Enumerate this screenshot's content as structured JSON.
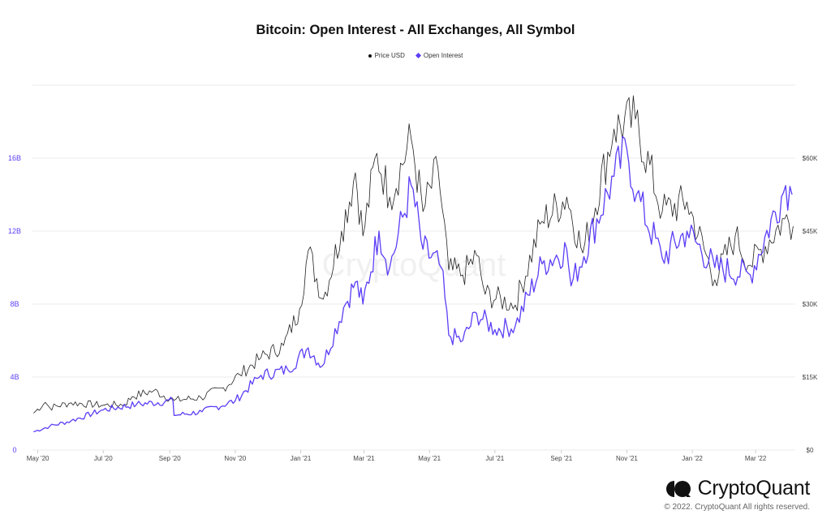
{
  "brand": {
    "name": "CryptoQuant",
    "copyright": "© 2022. CryptoQuant All rights reserved."
  },
  "watermark": "CryptoQuant",
  "colors": {
    "price": "#222222",
    "open_interest": "#5b3ff6",
    "grid": "#ebebeb"
  },
  "chart_data": {
    "type": "line",
    "title": "Bitcoin: Open Interest - All Exchanges, All Symbol",
    "legend": [
      "Price USD",
      "Open Interest"
    ],
    "legend_position": "top-center",
    "grid": true,
    "x_tick_labels": [
      "May '20",
      "Jul '20",
      "Sep '20",
      "Nov '20",
      "Jan '21",
      "Mar '21",
      "May '21",
      "Jul '21",
      "Sep '21",
      "Nov '21",
      "Jan '22",
      "Mar '22"
    ],
    "x_range": [
      "2020-04-26",
      "2022-04-07"
    ],
    "left_axis": {
      "series": "Open Interest",
      "ticks": [
        "0",
        "4B",
        "8B",
        "12B",
        "16B"
      ],
      "ylim": [
        0,
        20
      ]
    },
    "right_axis": {
      "series": "Price USD",
      "ticks": [
        "$0",
        "$15K",
        "$30K",
        "$45K",
        "$60K"
      ],
      "ylim": [
        0,
        75000
      ]
    },
    "series": [
      {
        "name": "Price USD",
        "axis": "right",
        "points": [
          [
            "2020-04-27",
            7600
          ],
          [
            "2020-05-08",
            9800
          ],
          [
            "2020-05-12",
            8700
          ],
          [
            "2020-06-01",
            9700
          ],
          [
            "2020-07-01",
            9200
          ],
          [
            "2020-07-21",
            9400
          ],
          [
            "2020-07-28",
            11000
          ],
          [
            "2020-08-17",
            12200
          ],
          [
            "2020-09-05",
            10200
          ],
          [
            "2020-09-30",
            10800
          ],
          [
            "2020-10-21",
            12800
          ],
          [
            "2020-11-05",
            15500
          ],
          [
            "2020-11-25",
            19000
          ],
          [
            "2020-12-16",
            21500
          ],
          [
            "2020-12-31",
            29000
          ],
          [
            "2021-01-08",
            41000
          ],
          [
            "2021-01-22",
            31000
          ],
          [
            "2021-02-08",
            45000
          ],
          [
            "2021-02-21",
            57000
          ],
          [
            "2021-02-28",
            44000
          ],
          [
            "2021-03-13",
            61000
          ],
          [
            "2021-03-25",
            52000
          ],
          [
            "2021-04-14",
            64000
          ],
          [
            "2021-04-25",
            49000
          ],
          [
            "2021-05-09",
            58000
          ],
          [
            "2021-05-19",
            37000
          ],
          [
            "2021-06-01",
            36000
          ],
          [
            "2021-06-14",
            40000
          ],
          [
            "2021-06-22",
            32000
          ],
          [
            "2021-07-20",
            29800
          ],
          [
            "2021-08-14",
            47000
          ],
          [
            "2021-09-06",
            52000
          ],
          [
            "2021-09-21",
            40500
          ],
          [
            "2021-10-20",
            66000
          ],
          [
            "2021-11-09",
            68000
          ],
          [
            "2021-12-04",
            49000
          ],
          [
            "2021-12-27",
            51000
          ],
          [
            "2022-01-22",
            35000
          ],
          [
            "2022-02-10",
            44000
          ],
          [
            "2022-02-24",
            38000
          ],
          [
            "2022-03-28",
            47500
          ],
          [
            "2022-04-05",
            46000
          ]
        ]
      },
      {
        "name": "Open Interest",
        "axis": "left",
        "points": [
          [
            "2020-04-27",
            1.0
          ],
          [
            "2020-05-12",
            1.3
          ],
          [
            "2020-06-01",
            1.6
          ],
          [
            "2020-07-01",
            2.2
          ],
          [
            "2020-08-01",
            2.5
          ],
          [
            "2020-09-04",
            2.7
          ],
          [
            "2020-09-05",
            1.9
          ],
          [
            "2020-10-01",
            2.1
          ],
          [
            "2020-11-01",
            2.7
          ],
          [
            "2020-11-25",
            4.1
          ],
          [
            "2020-12-20",
            4.4
          ],
          [
            "2021-01-08",
            5.6
          ],
          [
            "2021-01-21",
            4.6
          ],
          [
            "2021-02-10",
            7.8
          ],
          [
            "2021-02-21",
            9.2
          ],
          [
            "2021-02-28",
            8.0
          ],
          [
            "2021-03-15",
            12.0
          ],
          [
            "2021-03-25",
            10.0
          ],
          [
            "2021-04-14",
            14.5
          ],
          [
            "2021-04-25",
            11.0
          ],
          [
            "2021-05-12",
            10.0
          ],
          [
            "2021-05-19",
            6.3
          ],
          [
            "2021-06-01",
            6.0
          ],
          [
            "2021-06-14",
            7.5
          ],
          [
            "2021-07-01",
            6.6
          ],
          [
            "2021-07-20",
            6.8
          ],
          [
            "2021-08-14",
            10.2
          ],
          [
            "2021-09-06",
            11.0
          ],
          [
            "2021-09-10",
            9.0
          ],
          [
            "2021-10-20",
            15.0
          ],
          [
            "2021-11-01",
            16.5
          ],
          [
            "2021-11-10",
            14.0
          ],
          [
            "2021-12-04",
            10.5
          ],
          [
            "2021-12-27",
            12.0
          ],
          [
            "2022-01-22",
            10.0
          ],
          [
            "2022-02-24",
            9.6
          ],
          [
            "2022-03-29",
            14.5
          ],
          [
            "2022-04-04",
            14.0
          ]
        ]
      }
    ]
  }
}
